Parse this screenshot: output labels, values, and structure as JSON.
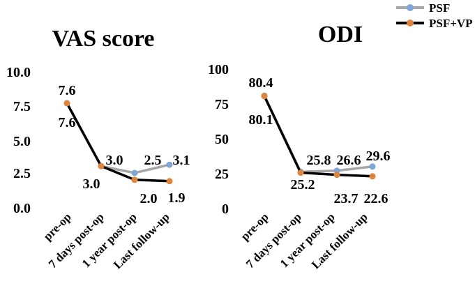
{
  "legend": {
    "position": "top-right",
    "items": [
      {
        "label": "PSF",
        "line_color": "#A5A5A5",
        "marker_color": "#7FA6D9"
      },
      {
        "label": "PSF+VP",
        "line_color": "#000000",
        "marker_color": "#E0843A"
      }
    ]
  },
  "chart_data": [
    {
      "type": "line",
      "title": "VAS score",
      "categories": [
        "pre-op",
        "7 days post-op",
        "1 year post-op",
        "Last follow-up"
      ],
      "ylim": [
        0,
        10
      ],
      "yticks": [
        "0.0",
        "2.5",
        "5.0",
        "7.5",
        "10.0"
      ],
      "ytick_values": [
        0,
        2.5,
        5,
        7.5,
        10
      ],
      "grid": false,
      "series": [
        {
          "name": "PSF",
          "values": [
            7.6,
            3.0,
            2.5,
            3.1
          ],
          "labels": [
            "7.6",
            "3.0",
            "2.5",
            "3.1"
          ]
        },
        {
          "name": "PSF+VP",
          "values": [
            7.6,
            3.0,
            2.0,
            1.9
          ],
          "labels": [
            "7.6",
            "3.0",
            "2.0",
            "1.9"
          ]
        }
      ]
    },
    {
      "type": "line",
      "title": "ODI",
      "categories": [
        "pre-op",
        "7 days post-op",
        "1 year post-op",
        "Last follow-up"
      ],
      "ylim": [
        0,
        100
      ],
      "yticks": [
        "0",
        "25",
        "50",
        "75",
        "100"
      ],
      "ytick_values": [
        0,
        25,
        50,
        75,
        100
      ],
      "grid": false,
      "series": [
        {
          "name": "PSF",
          "values": [
            80.4,
            25.8,
            26.6,
            29.6
          ],
          "labels": [
            "80.4",
            "25.8",
            "26.6",
            "29.6"
          ]
        },
        {
          "name": "PSF+VP",
          "values": [
            80.1,
            25.2,
            23.7,
            22.6
          ],
          "labels": [
            "80.1",
            "25.2",
            "23.7",
            "22.6"
          ]
        }
      ]
    }
  ]
}
